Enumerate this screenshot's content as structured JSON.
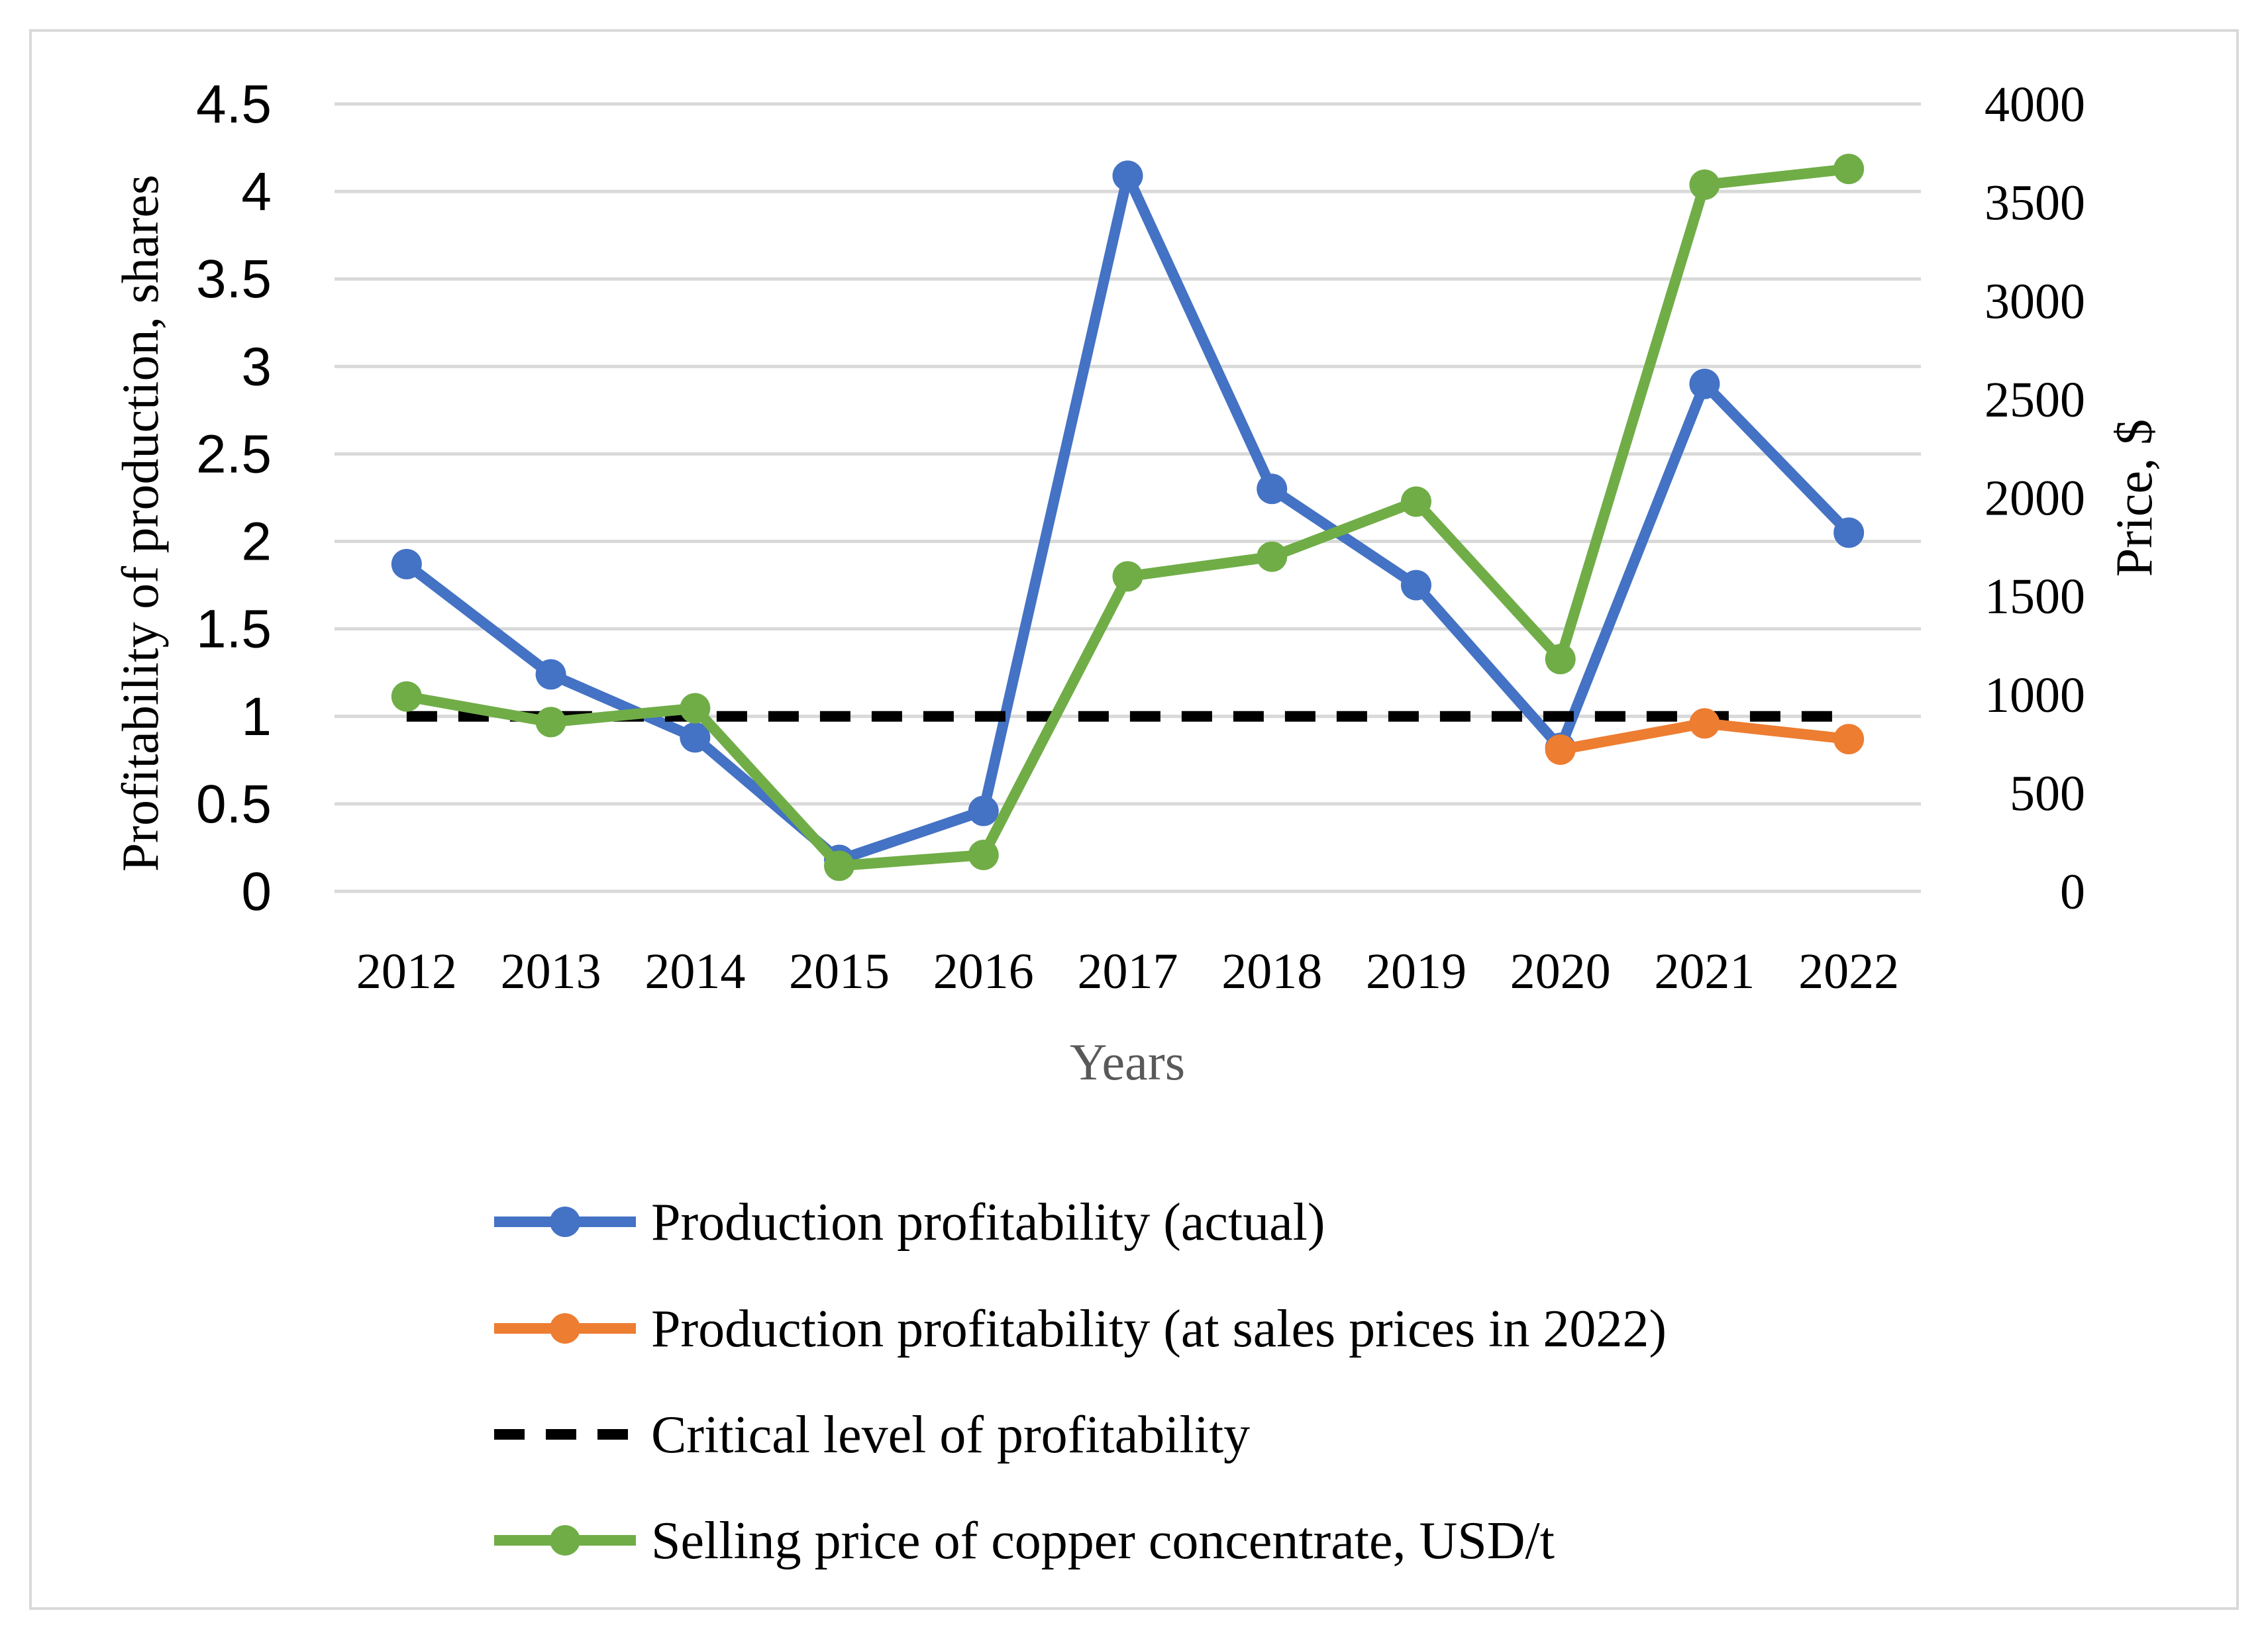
{
  "chart_data": {
    "type": "line",
    "title": "",
    "xlabel": "Years",
    "ylabel": "Profitability of production, shares",
    "y2label": "Price, $",
    "categories": [
      "2012",
      "2013",
      "2014",
      "2015",
      "2016",
      "2017",
      "2018",
      "2019",
      "2020",
      "2021",
      "2022"
    ],
    "ylim": [
      0,
      4.5
    ],
    "y2lim": [
      0,
      4000
    ],
    "yticks": [
      "0",
      "0.5",
      "1",
      "1.5",
      "2",
      "2.5",
      "3",
      "3.5",
      "4",
      "4.5"
    ],
    "y2ticks": [
      "0",
      "500",
      "1000",
      "1500",
      "2000",
      "2500",
      "3000",
      "3500",
      "4000"
    ],
    "grid": true,
    "legend_position": "bottom",
    "series": [
      {
        "name": "Production profitability (actual)",
        "axis": "left",
        "color": "#4472c4",
        "style": "solid-markers",
        "values": [
          1.87,
          1.24,
          0.88,
          0.18,
          0.46,
          4.09,
          2.3,
          1.75,
          0.82,
          2.9,
          2.05
        ]
      },
      {
        "name": "Production profitability (at sales prices in 2022)",
        "axis": "left",
        "color": "#ed7d31",
        "style": "solid-markers",
        "values": [
          null,
          null,
          null,
          null,
          null,
          null,
          null,
          null,
          0.81,
          0.96,
          0.87
        ]
      },
      {
        "name": "Critical level of profitability",
        "axis": "left",
        "color": "#000000",
        "style": "dashed",
        "values": [
          1,
          1,
          1,
          1,
          1,
          1,
          1,
          1,
          1,
          1,
          1
        ]
      },
      {
        "name": "Selling price of copper concentrate, USD/t",
        "axis": "right",
        "color": "#70ad47",
        "style": "solid-markers",
        "values": [
          990,
          860,
          930,
          130,
          185,
          1600,
          1700,
          1980,
          1180,
          3590,
          3670
        ]
      }
    ]
  }
}
